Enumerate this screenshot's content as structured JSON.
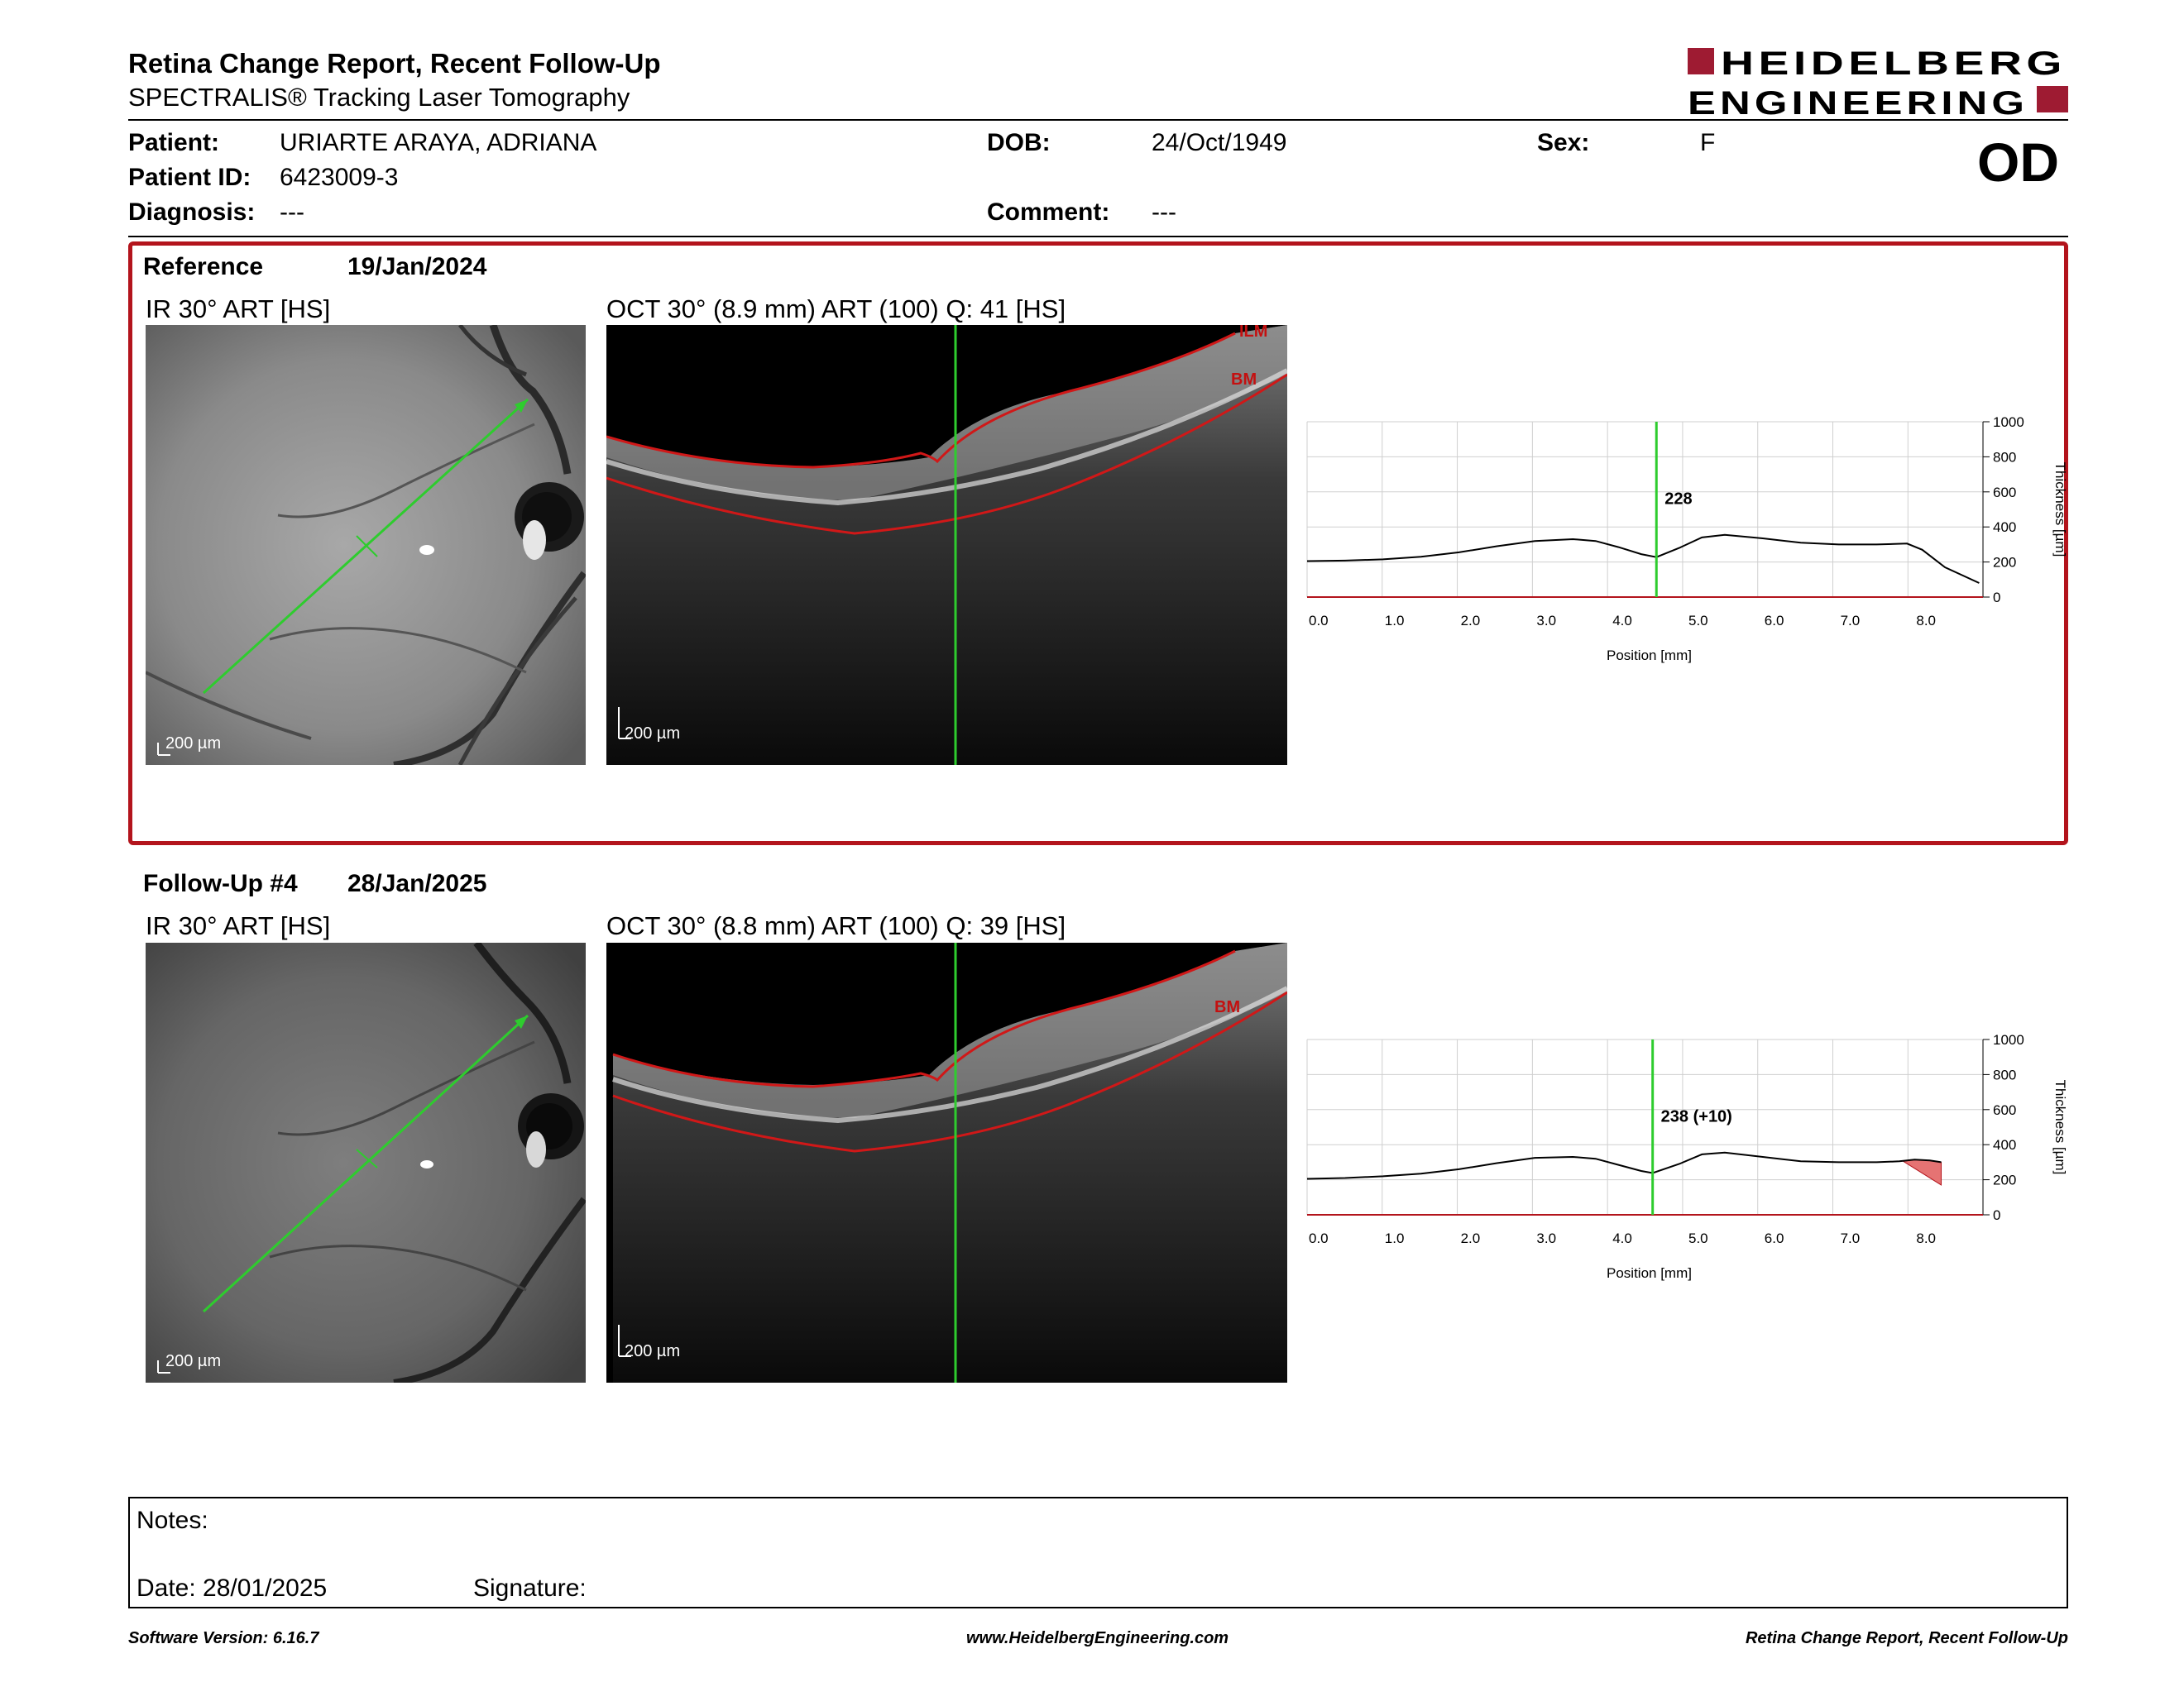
{
  "header": {
    "title": "Retina Change Report, Recent Follow-Up",
    "subtitle": "SPECTRALIS® Tracking Laser Tomography",
    "logo_line1": "HEIDELBERG",
    "logo_line2": "ENGINEERING",
    "eye": "OD"
  },
  "patient": {
    "patient_label": "Patient:",
    "patient_name": "URIARTE ARAYA, ADRIANA",
    "id_label": "Patient ID:",
    "id_value": "6423009-3",
    "diagnosis_label": "Diagnosis:",
    "diagnosis_value": "---",
    "dob_label": "DOB:",
    "dob_value": "24/Oct/1949",
    "comment_label": "Comment:",
    "comment_value": "---",
    "sex_label": "Sex:",
    "sex_value": "F"
  },
  "reference": {
    "label": "Reference",
    "date": "19/Jan/2024",
    "ir_caption": "IR 30° ART [HS]",
    "oct_caption": "OCT 30° (8.9 mm) ART (100) Q: 41 [HS]",
    "scale_ir": "200 µm",
    "scale_oct": "200 µm",
    "oct_label_ilm": "ILM",
    "oct_label_bm": "BM",
    "marker_value": "228"
  },
  "followup": {
    "label": "Follow-Up #4",
    "date": "28/Jan/2025",
    "ir_caption": "IR 30° ART [HS]",
    "oct_caption": "OCT 30° (8.8 mm) ART (100) Q: 39 [HS]",
    "scale_ir": "200 µm",
    "scale_oct": "200 µm",
    "oct_label_bm": "BM",
    "marker_value": "238 (+10)"
  },
  "chart_data": [
    {
      "type": "line",
      "xlabel": "Position [mm]",
      "ylabel": "Thickness [µm]",
      "xlim": [
        0,
        8.9
      ],
      "ylim": [
        0,
        1000
      ],
      "x_ticks": [
        "0.0",
        "1.0",
        "2.0",
        "3.0",
        "4.0",
        "5.0",
        "6.0",
        "7.0",
        "8.0"
      ],
      "y_ticks": [
        "0",
        "200",
        "400",
        "600",
        "800",
        "1000"
      ],
      "marker_x": 4.6,
      "marker_label": "228",
      "series": [
        {
          "x": [
            0,
            0.5,
            1,
            1.5,
            2,
            2.5,
            3,
            3.5,
            3.8,
            4.1,
            4.4,
            4.6,
            4.9,
            5.2,
            5.5,
            6,
            6.5,
            7,
            7.5,
            7.9,
            8.1,
            8.4,
            8.85
          ],
          "y": [
            205,
            208,
            215,
            230,
            255,
            290,
            320,
            330,
            320,
            285,
            245,
            228,
            280,
            340,
            355,
            335,
            310,
            300,
            300,
            305,
            270,
            170,
            80
          ]
        }
      ]
    },
    {
      "type": "line",
      "xlabel": "Position [mm]",
      "ylabel": "Thickness [µm]",
      "xlim": [
        0,
        8.9
      ],
      "ylim": [
        0,
        1000
      ],
      "x_ticks": [
        "0.0",
        "1.0",
        "2.0",
        "3.0",
        "4.0",
        "5.0",
        "6.0",
        "7.0",
        "8.0"
      ],
      "y_ticks": [
        "0",
        "200",
        "400",
        "600",
        "800",
        "1000"
      ],
      "marker_x": 4.55,
      "marker_label": "238 (+10)",
      "series": [
        {
          "x": [
            0,
            0.5,
            1,
            1.5,
            2,
            2.5,
            3,
            3.5,
            3.8,
            4.1,
            4.4,
            4.55,
            4.9,
            5.2,
            5.5,
            6,
            6.5,
            7,
            7.5,
            7.8,
            8.0,
            8.2,
            8.35
          ],
          "y": [
            205,
            210,
            220,
            235,
            260,
            295,
            325,
            330,
            320,
            285,
            250,
            238,
            290,
            345,
            355,
            330,
            305,
            300,
            300,
            305,
            315,
            310,
            300
          ]
        }
      ],
      "increase_region": {
        "x": [
          7.85,
          8.35
        ],
        "note": "thickening shown in red"
      }
    }
  ],
  "notes": {
    "label": "Notes:",
    "date_label": "Date: 28/01/2025",
    "signature_label": "Signature:"
  },
  "footer": {
    "left": "Software Version: 6.16.7",
    "center": "www.HeidelbergEngineering.com",
    "right": "Retina Change Report, Recent Follow-Up"
  },
  "colors": {
    "brand_red": "#9e1b32",
    "reference_border": "#b3141c",
    "scan_line": "#2ecc2e",
    "layer_red": "#d01818",
    "thickness_increase": "#e57373"
  }
}
